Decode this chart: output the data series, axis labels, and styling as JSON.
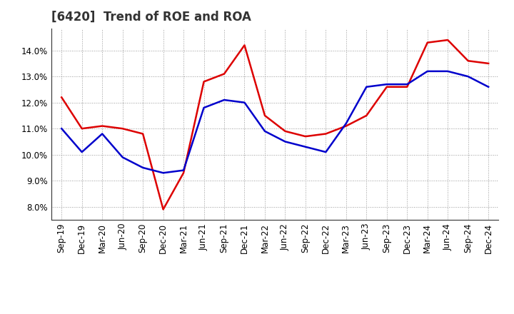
{
  "title": "[6420]  Trend of ROE and ROA",
  "labels": [
    "Sep-19",
    "Dec-19",
    "Mar-20",
    "Jun-20",
    "Sep-20",
    "Dec-20",
    "Mar-21",
    "Jun-21",
    "Sep-21",
    "Dec-21",
    "Mar-22",
    "Jun-22",
    "Sep-22",
    "Dec-22",
    "Mar-23",
    "Jun-23",
    "Sep-23",
    "Dec-23",
    "Mar-24",
    "Jun-24",
    "Sep-24",
    "Dec-24"
  ],
  "ROE": [
    12.2,
    11.0,
    11.1,
    11.0,
    10.8,
    7.9,
    9.3,
    12.8,
    13.1,
    14.2,
    11.5,
    10.9,
    10.7,
    10.8,
    11.1,
    11.5,
    12.6,
    12.6,
    14.3,
    14.4,
    13.6,
    13.5
  ],
  "ROA": [
    11.0,
    10.1,
    10.8,
    9.9,
    9.5,
    9.3,
    9.4,
    11.8,
    12.1,
    12.0,
    10.9,
    10.5,
    10.3,
    10.1,
    11.2,
    12.6,
    12.7,
    12.7,
    13.2,
    13.2,
    13.0,
    12.6
  ],
  "roe_color": "#dd0000",
  "roa_color": "#0000cc",
  "ylim_min": 7.5,
  "ylim_max": 14.85,
  "yticks": [
    8.0,
    9.0,
    10.0,
    11.0,
    12.0,
    13.0,
    14.0
  ],
  "background_color": "#ffffff",
  "grid_color": "#999999",
  "title_fontsize": 12,
  "legend_fontsize": 10,
  "tick_fontsize": 8.5
}
